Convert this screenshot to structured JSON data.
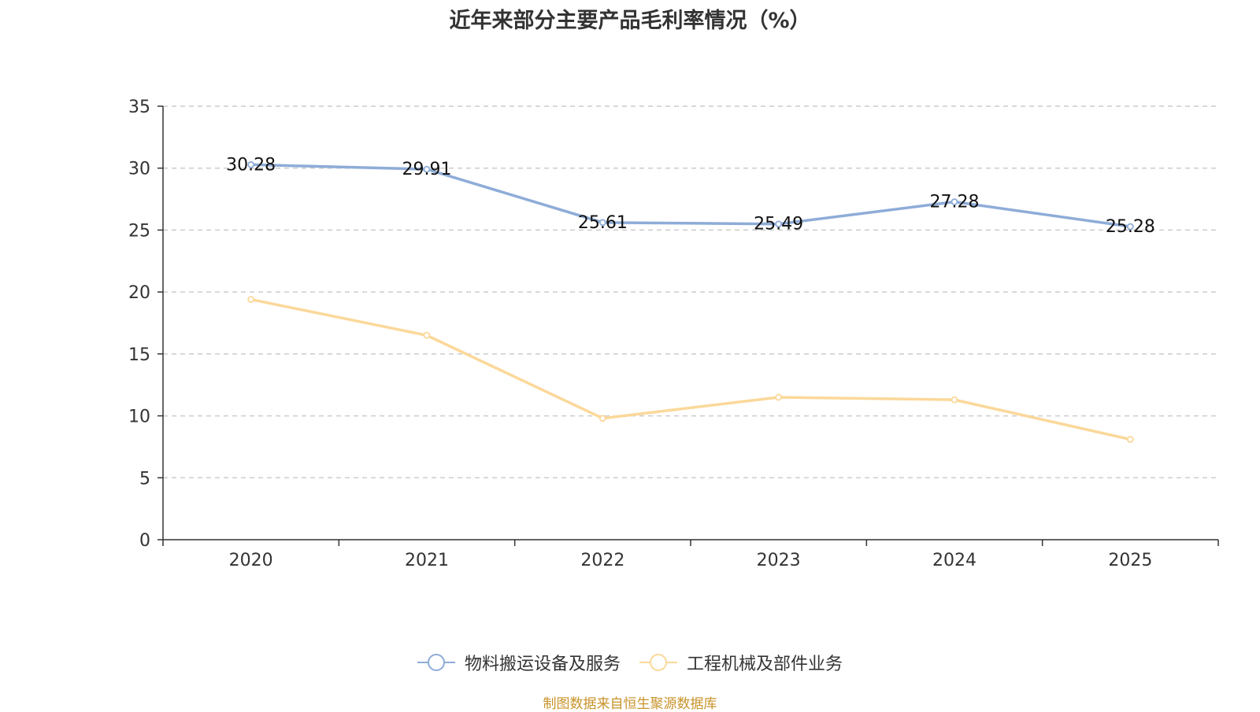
{
  "chart_data": {
    "type": "line",
    "title": "近年来部分主要产品毛利率情况（%）",
    "categories": [
      "2020",
      "2021",
      "2022",
      "2023",
      "2024",
      "2025"
    ],
    "ylim": [
      0,
      35
    ],
    "yticks": [
      0,
      5,
      10,
      15,
      20,
      25,
      30,
      35
    ],
    "series": [
      {
        "name": "物料搬运设备及服务",
        "color": "#8eacd8",
        "values": [
          30.28,
          29.91,
          25.61,
          25.49,
          27.28,
          25.28
        ],
        "labels_shown": true
      },
      {
        "name": "工程机械及部件业务",
        "color": "#fbd89a",
        "values": [
          19.4,
          16.5,
          9.8,
          11.5,
          11.3,
          8.1
        ],
        "labels_shown": false
      }
    ],
    "grid": true,
    "legend_position": "bottom"
  },
  "source_note": "制图数据来自恒生聚源数据库"
}
